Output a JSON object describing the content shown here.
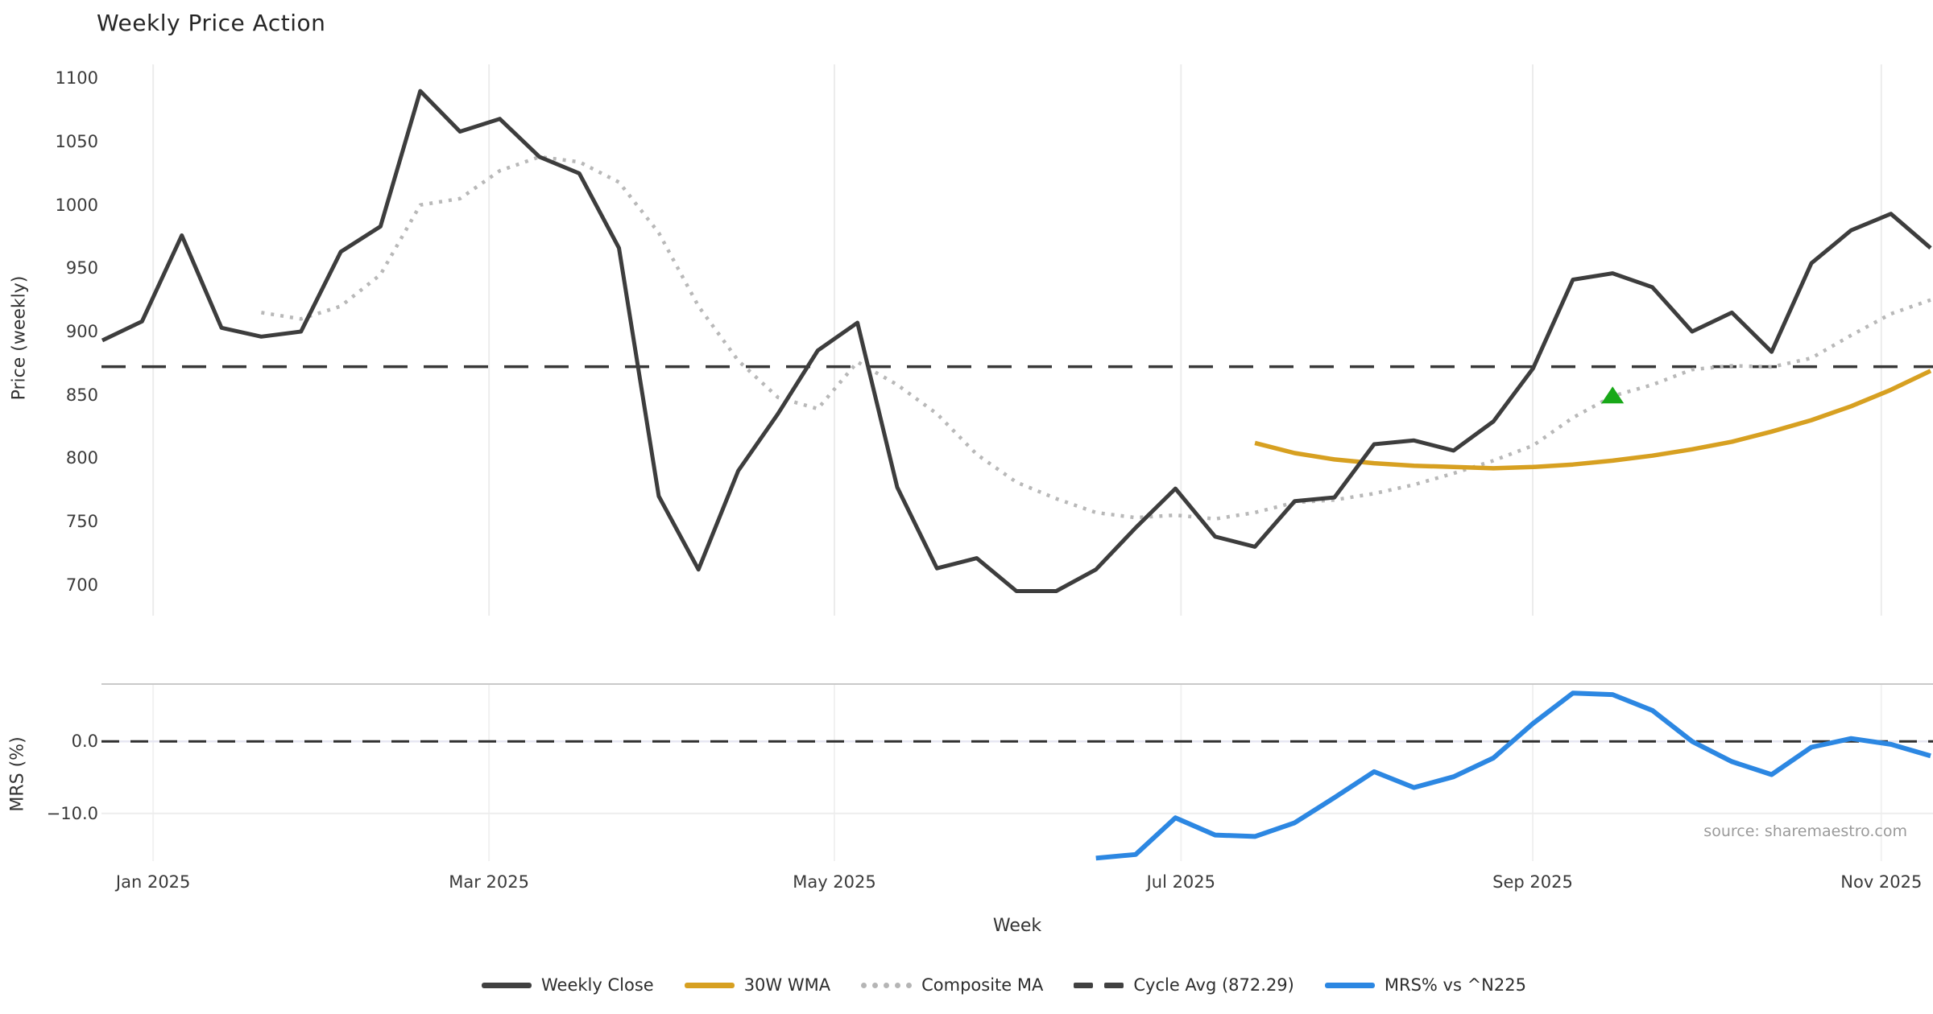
{
  "title": "Weekly Price Action",
  "source_note": "source: sharemaestro.com",
  "colors": {
    "weekly_close": "#3d3d3d",
    "wma30": "#d7a021",
    "composite_ma": "#b8b8b8",
    "cycle_avg": "#383838",
    "mrs": "#2c87e2",
    "marker_green": "#18a818",
    "grid_light": "#ececec",
    "panel_border": "#c9c9c9",
    "text_dark": "#3a3a3a",
    "text_source": "#9a9a9a"
  },
  "chart_data": [
    {
      "type": "line",
      "panel": "price",
      "title": "Weekly Price Action",
      "xlabel": "Week",
      "ylabel": "Price (weekly)",
      "yticks": [
        1100,
        1050,
        1000,
        950,
        900,
        850,
        800,
        750,
        700
      ],
      "ylim": [
        676,
        1111
      ],
      "grid": "vertical-only",
      "x_tick_labels": [
        {
          "label": "Jan 2025",
          "index": 1.28
        },
        {
          "label": "Mar 2025",
          "index": 9.73
        },
        {
          "label": "May 2025",
          "index": 18.42
        },
        {
          "label": "Jul 2025",
          "index": 27.14
        },
        {
          "label": "Sep 2025",
          "index": 35.99
        },
        {
          "label": "Nov 2025",
          "index": 44.76
        }
      ],
      "n_points": 47,
      "series": [
        {
          "name": "Weekly Close",
          "style": "solid",
          "color": "#3d3d3d",
          "width": 5,
          "start_index": 0,
          "values": [
            893,
            908,
            976,
            903,
            896,
            900,
            963,
            983,
            1090,
            1058,
            1068,
            1038,
            1025,
            966,
            770,
            712,
            790,
            835,
            885,
            907,
            777,
            713,
            721,
            695,
            695,
            712,
            745,
            776,
            738,
            730,
            766,
            769,
            811,
            814,
            806,
            829,
            871,
            941,
            946,
            935,
            900,
            915,
            884,
            954,
            980,
            993,
            966
          ]
        },
        {
          "name": "30W WMA",
          "style": "solid",
          "color": "#d7a021",
          "width": 5.5,
          "start_index": 29,
          "values": [
            812,
            804,
            799,
            796,
            794,
            793,
            792,
            793,
            795,
            798,
            802,
            807,
            813,
            821,
            830,
            841,
            854,
            869
          ]
        },
        {
          "name": "Composite MA",
          "style": "dotted",
          "color": "#b8b8b8",
          "width": 4.5,
          "start_index": 4,
          "values": [
            915,
            910,
            920,
            945,
            1000,
            1005,
            1027,
            1038,
            1034,
            1018,
            978,
            920,
            877,
            848,
            839,
            876,
            858,
            835,
            803,
            781,
            768,
            757,
            753,
            755,
            752,
            757,
            765,
            767,
            772,
            779,
            788,
            798,
            810,
            832,
            849,
            858,
            870,
            873,
            872,
            879,
            897,
            914,
            925
          ]
        },
        {
          "name": "Cycle Avg (872.29)",
          "style": "dashed",
          "color": "#383838",
          "width": 3.5,
          "constant_value": 872.29
        }
      ],
      "marker": {
        "shape": "triangle-up",
        "color": "#18a818",
        "index": 38,
        "value": 849,
        "on_series": "Composite MA"
      }
    },
    {
      "type": "line",
      "panel": "mrs",
      "ylabel": "MRS (%)",
      "yticks": [
        0.0,
        -10.0
      ],
      "ytick_labels": [
        "0.0",
        "−10.0"
      ],
      "ylim": [
        -16.6,
        7.9
      ],
      "zero_line": {
        "style": "dashed",
        "color": "#2f2f2f",
        "value": 0
      },
      "series": [
        {
          "name": "MRS% vs ^N225",
          "style": "solid",
          "color": "#2c87e2",
          "width": 6,
          "start_index": 25,
          "values": [
            -16.2,
            -15.7,
            -10.6,
            -13.0,
            -13.2,
            -11.3,
            -7.8,
            -4.2,
            -6.4,
            -4.9,
            -2.3,
            2.5,
            6.7,
            6.5,
            4.3,
            0.0,
            -2.8,
            -4.6,
            -0.8,
            0.4,
            -0.4,
            -2.0
          ]
        }
      ]
    }
  ],
  "legend": [
    {
      "label": "Weekly Close",
      "swatch": "solid",
      "color": "#414141"
    },
    {
      "label": "30W WMA",
      "swatch": "solid",
      "color": "#d7a021"
    },
    {
      "label": "Composite MA",
      "swatch": "dotted",
      "color": "#b5b5b5"
    },
    {
      "label": "Cycle Avg (872.29)",
      "swatch": "dashed",
      "color": "#414141"
    },
    {
      "label": "MRS% vs ^N225",
      "swatch": "solid",
      "color": "#2c87e2"
    }
  ],
  "axis_text": {
    "xlabel": "Week",
    "ylabel_top": "Price (weekly)",
    "ylabel_bottom": "MRS (%)"
  }
}
